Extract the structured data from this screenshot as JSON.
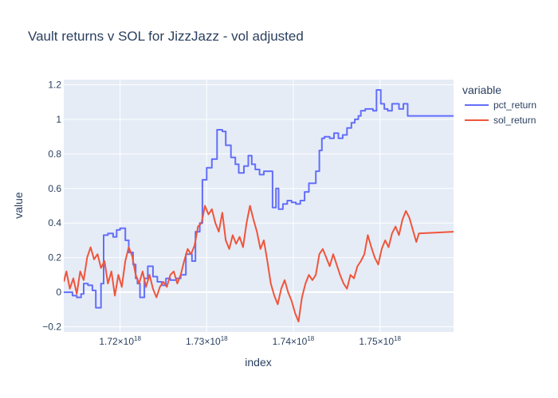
{
  "chart_data": {
    "type": "line",
    "title": "Vault returns v SOL for JizzJazz - vol adjusted",
    "xlabel": "index",
    "ylabel": "value",
    "legend_title": "variable",
    "legend_position": "right",
    "grid": true,
    "xlim": [
      1.7135e+18,
      1.7585e+18
    ],
    "ylim": [
      -0.23,
      1.23
    ],
    "x_ticks": [
      {
        "value": 1.72e+18,
        "mantissa": "1.72×10",
        "exp": "18"
      },
      {
        "value": 1.73e+18,
        "mantissa": "1.73×10",
        "exp": "18"
      },
      {
        "value": 1.74e+18,
        "mantissa": "1.74×10",
        "exp": "18"
      },
      {
        "value": 1.75e+18,
        "mantissa": "1.75×10",
        "exp": "18"
      }
    ],
    "y_ticks": [
      {
        "value": -0.2,
        "label": "−0.2"
      },
      {
        "value": 0,
        "label": "0"
      },
      {
        "value": 0.2,
        "label": "0.2"
      },
      {
        "value": 0.4,
        "label": "0.4"
      },
      {
        "value": 0.6,
        "label": "0.6"
      },
      {
        "value": 0.8,
        "label": "0.8"
      },
      {
        "value": 1,
        "label": "1"
      },
      {
        "value": 1.2,
        "label": "1.2"
      }
    ],
    "series": [
      {
        "name": "pct_return",
        "color": "#636efa",
        "shape": "step",
        "points": [
          [
            1.7135e+18,
            0.0
          ],
          [
            1.7145e+18,
            -0.02
          ],
          [
            1.715e+18,
            -0.03
          ],
          [
            1.7155e+18,
            -0.01
          ],
          [
            1.7158e+18,
            0.05
          ],
          [
            1.7163e+18,
            0.04
          ],
          [
            1.7168e+18,
            0.01
          ],
          [
            1.7172e+18,
            -0.09
          ],
          [
            1.7178e+18,
            0.05
          ],
          [
            1.7181e+18,
            0.33
          ],
          [
            1.7186e+18,
            0.34
          ],
          [
            1.7192e+18,
            0.32
          ],
          [
            1.7196e+18,
            0.36
          ],
          [
            1.72e+18,
            0.37
          ],
          [
            1.7206e+18,
            0.3
          ],
          [
            1.721e+18,
            0.23
          ],
          [
            1.7215e+18,
            0.16
          ],
          [
            1.7218e+18,
            0.08
          ],
          [
            1.722e+18,
            0.05
          ],
          [
            1.7223e+18,
            -0.03
          ],
          [
            1.7228e+18,
            0.08
          ],
          [
            1.7232e+18,
            0.15
          ],
          [
            1.7238e+18,
            0.09
          ],
          [
            1.7243e+18,
            0.06
          ],
          [
            1.7248e+18,
            0.04
          ],
          [
            1.7253e+18,
            0.08
          ],
          [
            1.7258e+18,
            0.07
          ],
          [
            1.7265e+18,
            0.08
          ],
          [
            1.727e+18,
            0.1
          ],
          [
            1.7276e+18,
            0.22
          ],
          [
            1.7283e+18,
            0.18
          ],
          [
            1.7287e+18,
            0.35
          ],
          [
            1.7292e+18,
            0.4
          ],
          [
            1.7295e+18,
            0.65
          ],
          [
            1.73e+18,
            0.72
          ],
          [
            1.7306e+18,
            0.77
          ],
          [
            1.7312e+18,
            0.94
          ],
          [
            1.7318e+18,
            0.93
          ],
          [
            1.7322e+18,
            0.85
          ],
          [
            1.7328e+18,
            0.78
          ],
          [
            1.7333e+18,
            0.74
          ],
          [
            1.7337e+18,
            0.69
          ],
          [
            1.7343e+18,
            0.73
          ],
          [
            1.7348e+18,
            0.79
          ],
          [
            1.7352e+18,
            0.74
          ],
          [
            1.7356e+18,
            0.71
          ],
          [
            1.7361e+18,
            0.68
          ],
          [
            1.7366e+18,
            0.7
          ],
          [
            1.7373e+18,
            0.7
          ],
          [
            1.7376e+18,
            0.49
          ],
          [
            1.738e+18,
            0.6
          ],
          [
            1.7383e+18,
            0.48
          ],
          [
            1.7388e+18,
            0.51
          ],
          [
            1.7393e+18,
            0.53
          ],
          [
            1.7398e+18,
            0.52
          ],
          [
            1.7403e+18,
            0.51
          ],
          [
            1.7408e+18,
            0.53
          ],
          [
            1.7413e+18,
            0.58
          ],
          [
            1.7418e+18,
            0.63
          ],
          [
            1.7426e+18,
            0.7
          ],
          [
            1.743e+18,
            0.82
          ],
          [
            1.7433e+18,
            0.89
          ],
          [
            1.7436e+18,
            0.9
          ],
          [
            1.7442e+18,
            0.89
          ],
          [
            1.7447e+18,
            0.92
          ],
          [
            1.7452e+18,
            0.89
          ],
          [
            1.7457e+18,
            0.91
          ],
          [
            1.7462e+18,
            0.95
          ],
          [
            1.7467e+18,
            0.98
          ],
          [
            1.7471e+18,
            1.0
          ],
          [
            1.7475e+18,
            1.02
          ],
          [
            1.7478e+18,
            1.05
          ],
          [
            1.7483e+18,
            1.06
          ],
          [
            1.7488e+18,
            1.06
          ],
          [
            1.7492e+18,
            1.05
          ],
          [
            1.7496e+18,
            1.17
          ],
          [
            1.7501e+18,
            1.09
          ],
          [
            1.7505e+18,
            1.06
          ],
          [
            1.7509e+18,
            1.05
          ],
          [
            1.7514e+18,
            1.09
          ],
          [
            1.7522e+18,
            1.06
          ],
          [
            1.7527e+18,
            1.09
          ],
          [
            1.7532e+18,
            1.02
          ],
          [
            1.7585e+18,
            1.02
          ]
        ]
      },
      {
        "name": "sol_return",
        "color": "#ef553b",
        "shape": "linear",
        "points": [
          [
            1.7135e+18,
            0.06
          ],
          [
            1.7138e+18,
            0.12
          ],
          [
            1.7142e+18,
            0.02
          ],
          [
            1.7146e+18,
            0.08
          ],
          [
            1.715e+18,
            -0.01
          ],
          [
            1.7154e+18,
            0.12
          ],
          [
            1.7158e+18,
            0.07
          ],
          [
            1.7162e+18,
            0.2
          ],
          [
            1.7166e+18,
            0.26
          ],
          [
            1.717e+18,
            0.19
          ],
          [
            1.7174e+18,
            0.22
          ],
          [
            1.7178e+18,
            0.14
          ],
          [
            1.7182e+18,
            0.18
          ],
          [
            1.7186e+18,
            0.05
          ],
          [
            1.719e+18,
            0.12
          ],
          [
            1.7194e+18,
            -0.02
          ],
          [
            1.7198e+18,
            0.1
          ],
          [
            1.7202e+18,
            0.03
          ],
          [
            1.7206e+18,
            0.18
          ],
          [
            1.721e+18,
            0.26
          ],
          [
            1.7214e+18,
            0.21
          ],
          [
            1.7218e+18,
            0.1
          ],
          [
            1.7222e+18,
            0.05
          ],
          [
            1.7226e+18,
            0.12
          ],
          [
            1.723e+18,
            0.03
          ],
          [
            1.7234e+18,
            0.1
          ],
          [
            1.7238e+18,
            0.02
          ],
          [
            1.7242e+18,
            -0.03
          ],
          [
            1.7246e+18,
            0.03
          ],
          [
            1.725e+18,
            0.06
          ],
          [
            1.7254e+18,
            0.03
          ],
          [
            1.7258e+18,
            0.1
          ],
          [
            1.7262e+18,
            0.12
          ],
          [
            1.7266e+18,
            0.05
          ],
          [
            1.727e+18,
            0.1
          ],
          [
            1.7274e+18,
            0.18
          ],
          [
            1.7278e+18,
            0.25
          ],
          [
            1.7282e+18,
            0.22
          ],
          [
            1.7286e+18,
            0.27
          ],
          [
            1.729e+18,
            0.38
          ],
          [
            1.7294e+18,
            0.4
          ],
          [
            1.7298e+18,
            0.5
          ],
          [
            1.7302e+18,
            0.45
          ],
          [
            1.7306e+18,
            0.48
          ],
          [
            1.731e+18,
            0.4
          ],
          [
            1.7314e+18,
            0.35
          ],
          [
            1.7318e+18,
            0.46
          ],
          [
            1.7322e+18,
            0.3
          ],
          [
            1.7326e+18,
            0.25
          ],
          [
            1.733e+18,
            0.33
          ],
          [
            1.7334e+18,
            0.28
          ],
          [
            1.7338e+18,
            0.32
          ],
          [
            1.7342e+18,
            0.26
          ],
          [
            1.7346e+18,
            0.4
          ],
          [
            1.735e+18,
            0.5
          ],
          [
            1.7354e+18,
            0.42
          ],
          [
            1.7358e+18,
            0.35
          ],
          [
            1.7362e+18,
            0.25
          ],
          [
            1.7366e+18,
            0.3
          ],
          [
            1.737e+18,
            0.18
          ],
          [
            1.7374e+18,
            0.05
          ],
          [
            1.7378e+18,
            -0.02
          ],
          [
            1.7382e+18,
            -0.07
          ],
          [
            1.7386e+18,
            0.02
          ],
          [
            1.739e+18,
            0.07
          ],
          [
            1.7394e+18,
            0.0
          ],
          [
            1.7398e+18,
            -0.05
          ],
          [
            1.7402e+18,
            -0.12
          ],
          [
            1.7406e+18,
            -0.17
          ],
          [
            1.741e+18,
            -0.03
          ],
          [
            1.7414e+18,
            0.05
          ],
          [
            1.7418e+18,
            0.1
          ],
          [
            1.7422e+18,
            0.07
          ],
          [
            1.7426e+18,
            0.1
          ],
          [
            1.743e+18,
            0.22
          ],
          [
            1.7434e+18,
            0.25
          ],
          [
            1.7438e+18,
            0.2
          ],
          [
            1.7442e+18,
            0.15
          ],
          [
            1.7446e+18,
            0.22
          ],
          [
            1.745e+18,
            0.16
          ],
          [
            1.7454e+18,
            0.1
          ],
          [
            1.7458e+18,
            0.05
          ],
          [
            1.7462e+18,
            0.02
          ],
          [
            1.7466e+18,
            0.1
          ],
          [
            1.747e+18,
            0.08
          ],
          [
            1.7474e+18,
            0.15
          ],
          [
            1.7478e+18,
            0.18
          ],
          [
            1.7482e+18,
            0.22
          ],
          [
            1.7486e+18,
            0.33
          ],
          [
            1.749e+18,
            0.26
          ],
          [
            1.7494e+18,
            0.2
          ],
          [
            1.7498e+18,
            0.16
          ],
          [
            1.7502e+18,
            0.25
          ],
          [
            1.7506e+18,
            0.3
          ],
          [
            1.751e+18,
            0.26
          ],
          [
            1.7514e+18,
            0.34
          ],
          [
            1.7518e+18,
            0.38
          ],
          [
            1.7522e+18,
            0.33
          ],
          [
            1.7526e+18,
            0.42
          ],
          [
            1.753e+18,
            0.47
          ],
          [
            1.7534e+18,
            0.43
          ],
          [
            1.7538e+18,
            0.36
          ],
          [
            1.7542e+18,
            0.29
          ],
          [
            1.7545e+18,
            0.34
          ],
          [
            1.7585e+18,
            0.35
          ]
        ]
      }
    ]
  }
}
